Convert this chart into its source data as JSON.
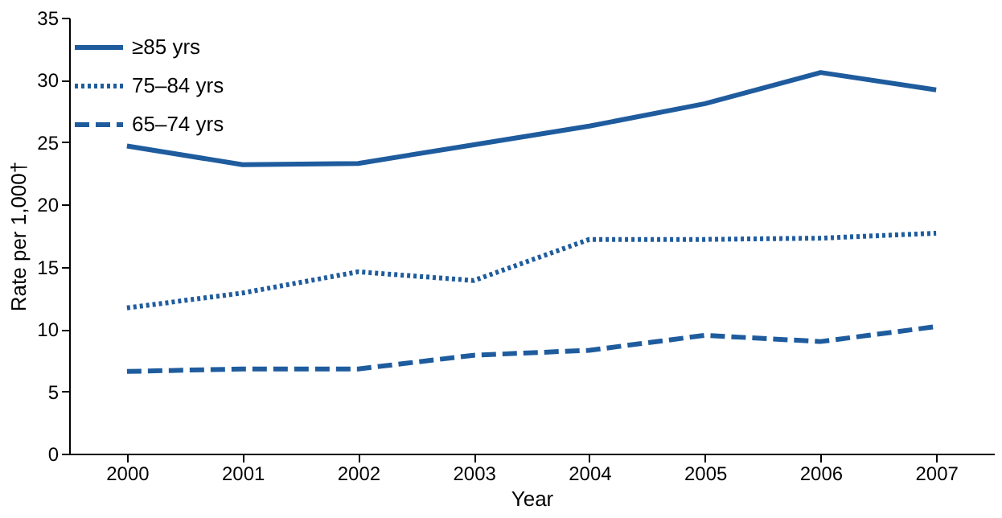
{
  "chart_data": {
    "type": "line",
    "xlabel": "Year",
    "ylabel": "Rate per 1,000†",
    "categories": [
      "2000",
      "2001",
      "2002",
      "2003",
      "2004",
      "2005",
      "2006",
      "2007"
    ],
    "series": [
      {
        "name": "≥85 yrs",
        "color": "#1f5c9e",
        "line_style": "solid",
        "values": [
          24.7,
          23.2,
          23.3,
          24.8,
          26.3,
          28.1,
          30.6,
          29.2
        ]
      },
      {
        "name": "75–84 yrs",
        "color": "#1f5c9e",
        "line_style": "dotted",
        "values": [
          11.7,
          12.9,
          14.6,
          13.9,
          17.2,
          17.2,
          17.3,
          17.7
        ]
      },
      {
        "name": "65–74 yrs",
        "color": "#1f5c9e",
        "line_style": "dashed",
        "values": [
          6.6,
          6.8,
          6.8,
          7.9,
          8.3,
          9.5,
          9.0,
          10.2
        ]
      }
    ],
    "ylim": [
      0,
      35
    ],
    "yticks": [
      0,
      5,
      10,
      15,
      20,
      25,
      30,
      35
    ],
    "grid": false,
    "legend": "top left",
    "marker": "none"
  }
}
